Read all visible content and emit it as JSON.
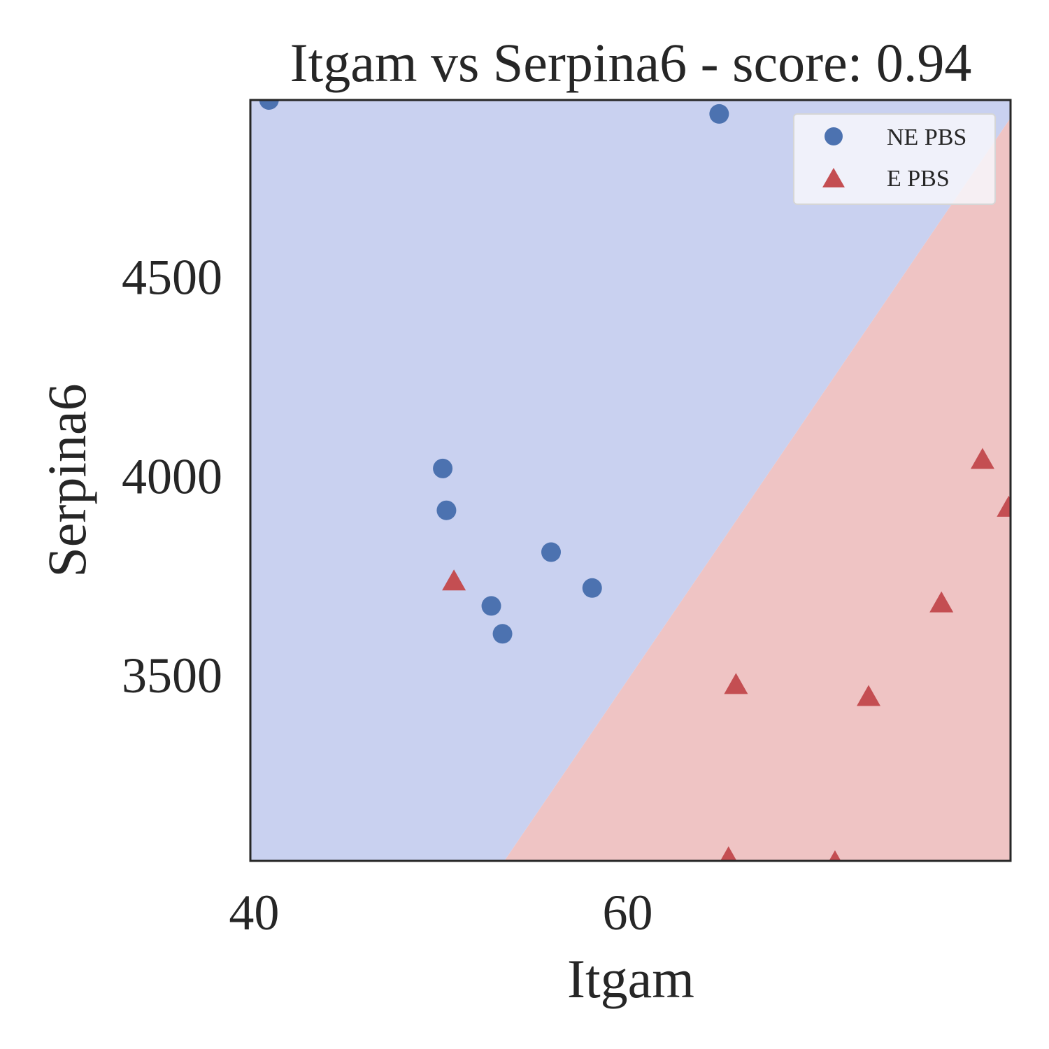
{
  "chart_data": {
    "type": "scatter",
    "title": "Itgam vs Serpina6 - score: 0.94",
    "xlabel": "Itgam",
    "ylabel": "Serpina6",
    "xlim": [
      39.8,
      80.5
    ],
    "ylim": [
      3035,
      4945
    ],
    "xticks": [
      40,
      60
    ],
    "yticks": [
      3500,
      4000,
      4500
    ],
    "grid": false,
    "legend_position": "top-right",
    "decision_boundary": {
      "points": [
        [
          53.4,
          3035
        ],
        [
          80.5,
          4900
        ]
      ],
      "class_above_left": "NE PBS",
      "class_below_right": "E PBS",
      "colors": {
        "NE PBS": "#c9d1f0",
        "E PBS": "#efc4c4"
      }
    },
    "series": [
      {
        "name": "NE PBS",
        "marker": "circle",
        "color": "#4c72b0",
        "points": [
          {
            "x": 40.8,
            "y": 4945
          },
          {
            "x": 64.9,
            "y": 4910
          },
          {
            "x": 50.1,
            "y": 4020
          },
          {
            "x": 50.3,
            "y": 3915
          },
          {
            "x": 55.9,
            "y": 3810
          },
          {
            "x": 58.1,
            "y": 3720
          },
          {
            "x": 52.7,
            "y": 3675
          },
          {
            "x": 53.3,
            "y": 3605
          }
        ]
      },
      {
        "name": "E PBS",
        "marker": "triangle",
        "color": "#c44e52",
        "points": [
          {
            "x": 50.7,
            "y": 3735
          },
          {
            "x": 79.0,
            "y": 4040
          },
          {
            "x": 80.4,
            "y": 3920
          },
          {
            "x": 76.8,
            "y": 3680
          },
          {
            "x": 65.8,
            "y": 3475
          },
          {
            "x": 72.9,
            "y": 3445
          },
          {
            "x": 65.4,
            "y": 3040
          },
          {
            "x": 71.1,
            "y": 3030
          }
        ]
      }
    ]
  }
}
